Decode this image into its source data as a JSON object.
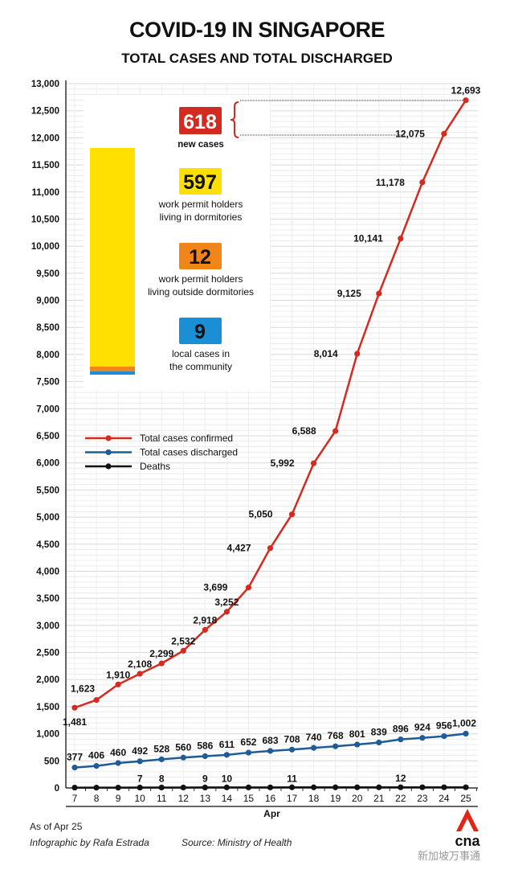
{
  "title": "COVID-19 IN SINGAPORE",
  "subtitle": "TOTAL CASES AND TOTAL DISCHARGED",
  "chart_data": {
    "type": "line",
    "xlabel": "Apr",
    "x": [
      7,
      8,
      9,
      10,
      11,
      12,
      13,
      14,
      15,
      16,
      17,
      18,
      19,
      20,
      21,
      22,
      23,
      24,
      25
    ],
    "ylim": [
      0,
      13000
    ],
    "yticks": [
      0,
      500,
      1000,
      1500,
      2000,
      2500,
      3000,
      3500,
      4000,
      4500,
      5000,
      5500,
      6000,
      6500,
      7000,
      7500,
      8000,
      8500,
      9000,
      9500,
      10000,
      10500,
      11000,
      11500,
      12000,
      12500,
      13000
    ],
    "ytick_labels": [
      "0",
      "500",
      "1,000",
      "1,500",
      "2,000",
      "2,500",
      "3,000",
      "3,500",
      "4,000",
      "4,500",
      "5,000",
      "5,500",
      "6,000",
      "6,500",
      "7,000",
      "7,500",
      "8,000",
      "8,500",
      "9,000",
      "9,500",
      "10,000",
      "10,500",
      "11,000",
      "11,500",
      "12,000",
      "12,500",
      "13,000"
    ],
    "grid": true,
    "legend_position": "middle-left",
    "series": [
      {
        "name": "Total cases confirmed",
        "color": "#d42b20",
        "values": [
          1481,
          1623,
          1910,
          2108,
          2299,
          2532,
          2918,
          3252,
          3699,
          4427,
          5050,
          5992,
          6588,
          8014,
          9125,
          10141,
          11178,
          12075,
          12693
        ],
        "labels": [
          "1,481",
          "1,623",
          "1,910",
          "2,108",
          "2,299",
          "2,532",
          "2,918",
          "3,252",
          "3,699",
          "4,427",
          "5,050",
          "5,992",
          "6,588",
          "8,014",
          "9,125",
          "10,141",
          "11,178",
          "12,075",
          "12,693"
        ]
      },
      {
        "name": "Total cases discharged",
        "color": "#1f5b94",
        "values": [
          377,
          406,
          460,
          492,
          528,
          560,
          586,
          611,
          652,
          683,
          708,
          740,
          768,
          801,
          839,
          896,
          924,
          956,
          1002
        ],
        "labels": [
          "377",
          "406",
          "460",
          "492",
          "528",
          "560",
          "586",
          "611",
          "652",
          "683",
          "708",
          "740",
          "768",
          "801",
          "839",
          "896",
          "924",
          "956",
          "1,002"
        ]
      },
      {
        "name": "Deaths",
        "color": "#111111",
        "values": [
          6,
          6,
          6,
          7,
          8,
          8,
          9,
          10,
          10,
          10,
          11,
          11,
          11,
          11,
          11,
          12,
          12,
          12,
          12
        ],
        "labels": [
          "",
          "",
          "",
          "7",
          "8",
          "",
          "9",
          "10",
          "",
          "",
          "11",
          "",
          "",
          "",
          "",
          "12",
          "",
          "",
          ""
        ]
      }
    ],
    "annotation": {
      "new_cases": {
        "value": "618",
        "label": "new cases",
        "color": "#d42b20"
      },
      "breakdown": [
        {
          "value": "597",
          "label1": "work permit holders",
          "label2": "living in dormitories",
          "color": "#ffe000"
        },
        {
          "value": "12",
          "label1": "work permit holders",
          "label2": "living outside dormitories",
          "color": "#f08519"
        },
        {
          "value": "9",
          "label1": "local cases in",
          "label2": "the community",
          "color": "#1a8fd6"
        }
      ]
    }
  },
  "footer": {
    "as_of": "As of Apr 25",
    "credit": "Infographic by Rafa Estrada",
    "source": "Source: Ministry of Health",
    "logo": "cna",
    "watermark": "新加坡万事通"
  }
}
